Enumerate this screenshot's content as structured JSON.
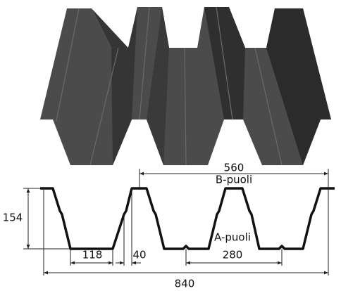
{
  "profile": {
    "side_labels": {
      "b_side": "B-puoli",
      "a_side": "A-puoli"
    },
    "dimensions": {
      "total_cover": 840,
      "b_span": 560,
      "height": 154,
      "bottom_flange": 118,
      "top_offset": 40,
      "a_span": 280
    }
  }
}
